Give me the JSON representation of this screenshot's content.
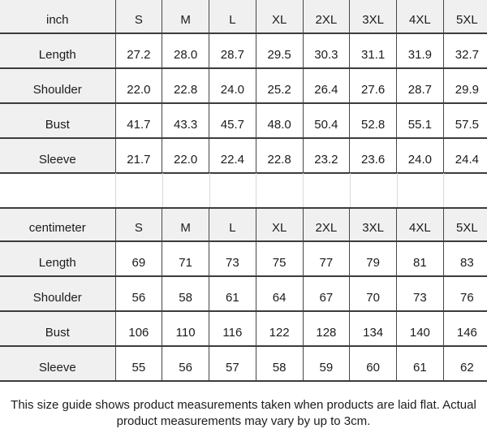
{
  "tables": [
    {
      "unit": "inch",
      "sizes": [
        "S",
        "M",
        "L",
        "XL",
        "2XL",
        "3XL",
        "4XL",
        "5XL"
      ],
      "rows": [
        {
          "label": "Length",
          "values": [
            "27.2",
            "28.0",
            "28.7",
            "29.5",
            "30.3",
            "31.1",
            "31.9",
            "32.7"
          ]
        },
        {
          "label": "Shoulder",
          "values": [
            "22.0",
            "22.8",
            "24.0",
            "25.2",
            "26.4",
            "27.6",
            "28.7",
            "29.9"
          ]
        },
        {
          "label": "Bust",
          "values": [
            "41.7",
            "43.3",
            "45.7",
            "48.0",
            "50.4",
            "52.8",
            "55.1",
            "57.5"
          ]
        },
        {
          "label": "Sleeve",
          "values": [
            "21.7",
            "22.0",
            "22.4",
            "22.8",
            "23.2",
            "23.6",
            "24.0",
            "24.4"
          ]
        }
      ]
    },
    {
      "unit": "centimeter",
      "sizes": [
        "S",
        "M",
        "L",
        "XL",
        "2XL",
        "3XL",
        "4XL",
        "5XL"
      ],
      "rows": [
        {
          "label": "Length",
          "values": [
            "69",
            "71",
            "73",
            "75",
            "77",
            "79",
            "81",
            "83"
          ]
        },
        {
          "label": "Shoulder",
          "values": [
            "56",
            "58",
            "61",
            "64",
            "67",
            "70",
            "73",
            "76"
          ]
        },
        {
          "label": "Bust",
          "values": [
            "106",
            "110",
            "116",
            "122",
            "128",
            "134",
            "140",
            "146"
          ]
        },
        {
          "label": "Sleeve",
          "values": [
            "55",
            "56",
            "57",
            "58",
            "59",
            "60",
            "61",
            "62"
          ]
        }
      ]
    }
  ],
  "footer": {
    "note": "This size guide shows product measurements taken when products are laid flat. Actual product measurements may vary by up to 3cm."
  },
  "colors": {
    "header_bg": "#f0f0f0",
    "border_h": "#3c3c3c",
    "border_v": "#474747",
    "border_light": "#d9d9d9",
    "text": "#1c1c1c"
  }
}
